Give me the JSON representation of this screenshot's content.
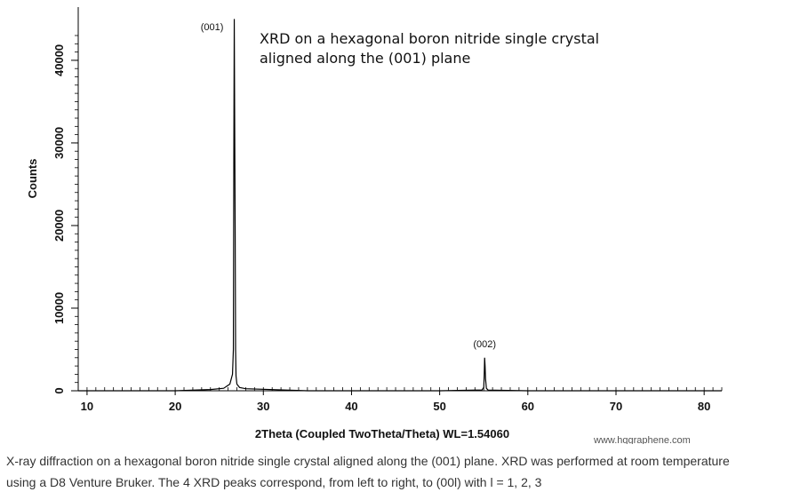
{
  "chart_data": {
    "type": "line",
    "title": "XRD on a hexagonal boron nitride single crystal aligned along the (001) plane",
    "title_lines": [
      "XRD on a hexagonal boron nitride single crystal",
      "aligned along the (001) plane"
    ],
    "xlabel": "2Theta (Coupled TwoTheta/Theta) WL=1.54060",
    "ylabel": "Counts",
    "xlim": [
      9,
      82
    ],
    "ylim": [
      0,
      43000
    ],
    "x_ticks": [
      10,
      20,
      30,
      40,
      50,
      60,
      70,
      80
    ],
    "y_ticks": [
      0,
      10000,
      20000,
      30000,
      40000
    ],
    "grid": false,
    "line_color": "#000000",
    "series": [
      {
        "values_x": [
          9,
          20,
          24,
          25.5,
          26.2,
          26.5,
          26.6,
          26.65,
          26.7,
          26.75,
          26.8,
          26.85,
          26.9,
          27.0,
          27.3,
          28,
          35,
          50,
          54.8,
          55.0,
          55.05,
          55.1,
          55.15,
          55.2,
          55.3,
          55.5,
          60,
          70,
          82
        ],
        "values_y": [
          0,
          0,
          150,
          300,
          800,
          2000,
          5000,
          28000,
          45000,
          32000,
          20000,
          5000,
          1800,
          800,
          400,
          250,
          0,
          0,
          100,
          400,
          1800,
          4000,
          3000,
          1500,
          300,
          80,
          0,
          0,
          0
        ]
      }
    ],
    "annotations": [
      {
        "text": "(001)",
        "x": 26.7,
        "y": 45000
      },
      {
        "text": "(002)",
        "x": 55.1,
        "y": 4000
      }
    ]
  },
  "watermark": "www.hqgraphene.com",
  "caption_lines": [
    "X-ray diffraction on a hexagonal boron nitride single crystal aligned along the (001) plane. XRD was performed at room temperature",
    "using a D8 Venture Bruker. The 4 XRD peaks correspond, from left to right, to (00l) with l = 1, 2, 3"
  ]
}
